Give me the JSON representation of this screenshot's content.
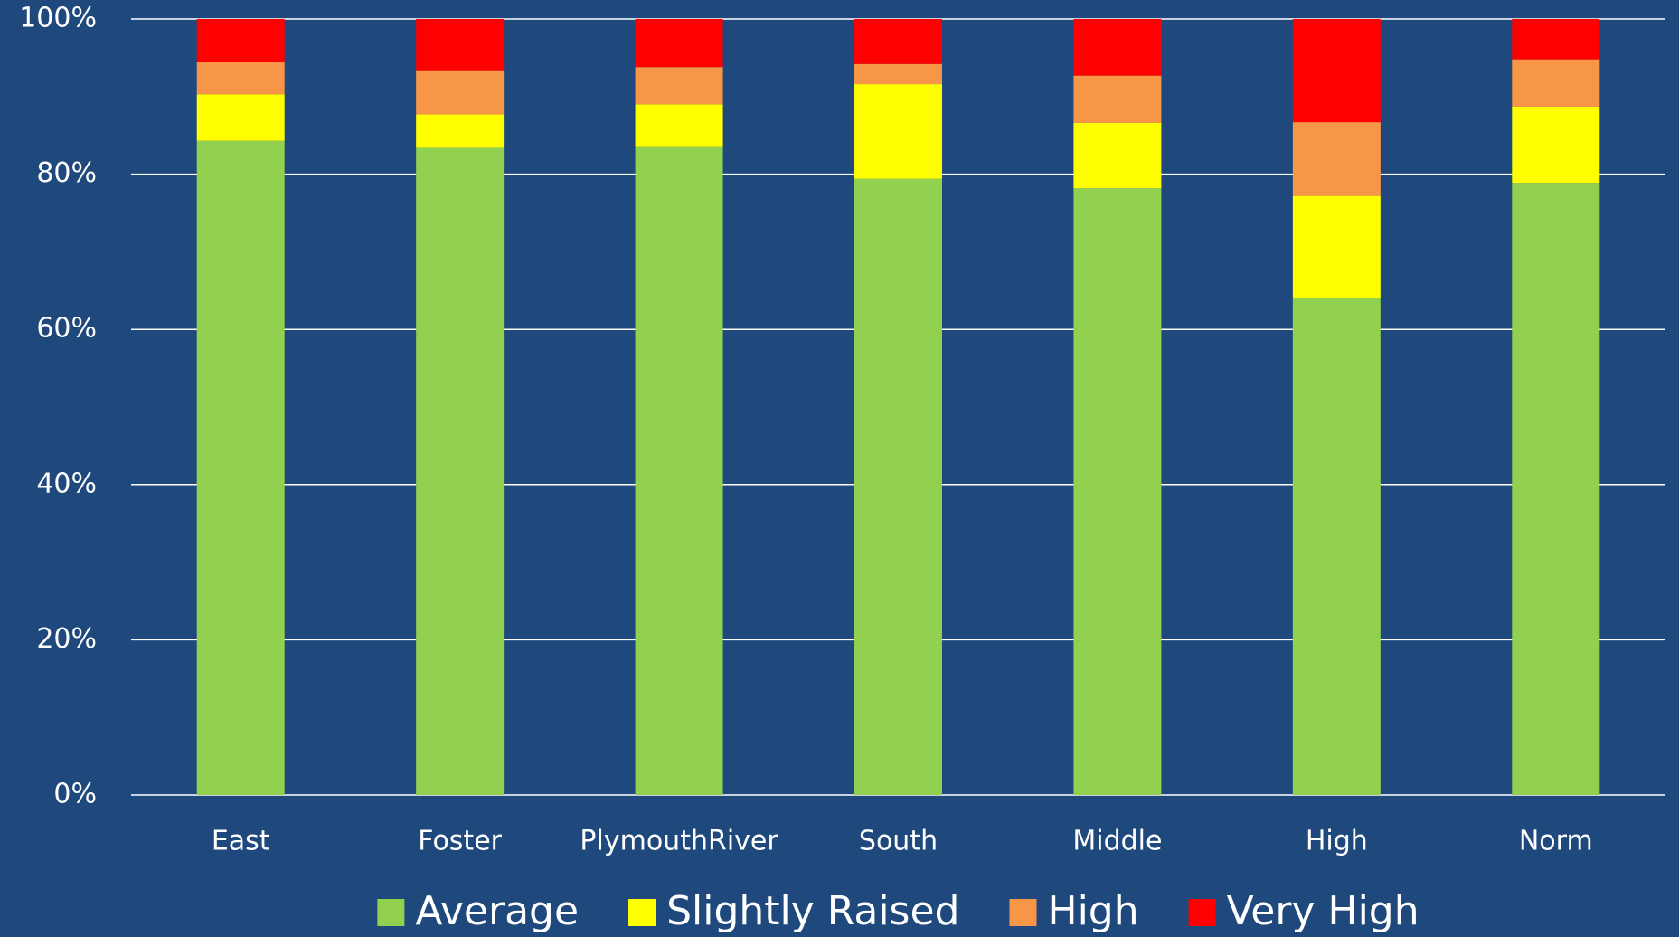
{
  "chart_data": {
    "type": "stacked_bar",
    "categories": [
      "East",
      "Foster",
      "PlymouthRiver",
      "South",
      "Middle",
      "High",
      "Norm"
    ],
    "series": [
      {
        "name": "Average",
        "color": "#92d050",
        "values": [
          84.3,
          83.4,
          83.6,
          79.4,
          78.2,
          64.1,
          78.9
        ]
      },
      {
        "name": "Slightly Raised",
        "color": "#ffff00",
        "values": [
          6.0,
          4.3,
          5.4,
          12.2,
          8.4,
          13.1,
          9.8
        ]
      },
      {
        "name": "High",
        "color": "#f79646",
        "values": [
          4.2,
          5.7,
          4.8,
          2.6,
          6.1,
          9.5,
          6.1
        ]
      },
      {
        "name": "Very High",
        "color": "#ff0000",
        "values": [
          5.5,
          6.6,
          6.2,
          5.8,
          7.3,
          13.3,
          5.2
        ]
      }
    ],
    "ylim": [
      0,
      100
    ],
    "yticks": [
      {
        "value": 0,
        "label": "0%"
      },
      {
        "value": 20,
        "label": "20%"
      },
      {
        "value": 40,
        "label": "40%"
      },
      {
        "value": 60,
        "label": "60%"
      },
      {
        "value": 80,
        "label": "80%"
      },
      {
        "value": 100,
        "label": "100%"
      }
    ],
    "grid": true,
    "legend": "bottom"
  }
}
